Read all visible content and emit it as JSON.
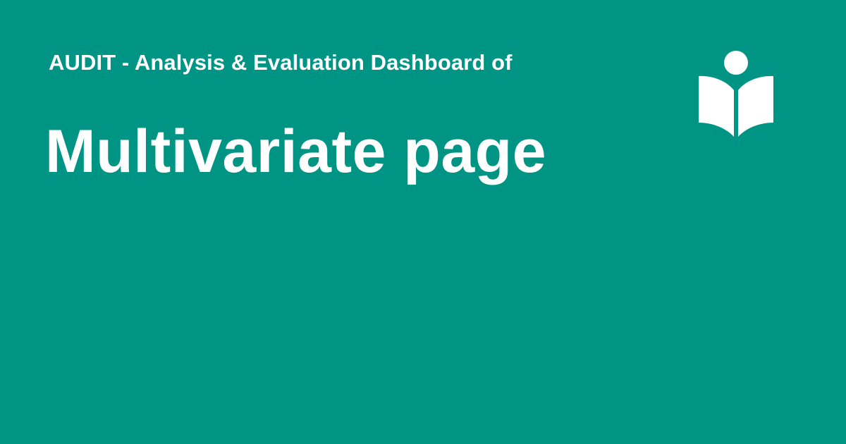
{
  "header": {
    "subtitle": "AUDIT - Analysis & Evaluation Dashboard of",
    "title": "Multivariate page"
  },
  "logo": {
    "icon": "reader-book-icon",
    "color": "#ffffff"
  },
  "colors": {
    "background": "#009485",
    "text": "#ffffff"
  }
}
